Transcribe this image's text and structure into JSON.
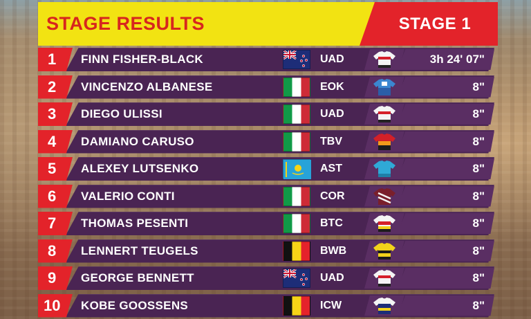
{
  "header": {
    "title": "STAGE RESULTS",
    "stage": "STAGE 1"
  },
  "colors": {
    "title_bar": "#f2e312",
    "title_text": "#d7261e",
    "accent_red": "#e3232a",
    "row_bg": "#4a2453"
  },
  "results": [
    {
      "pos": "1",
      "name": "FINN FISHER-BLACK",
      "flag": "new-zealand-flag-icon",
      "team": "UAD",
      "jersey": "uae-jersey-icon",
      "time": "3h 24' 07\""
    },
    {
      "pos": "2",
      "name": "VINCENZO ALBANESE",
      "flag": "italy-flag-icon",
      "team": "EOK",
      "jersey": "eolo-kometa-jersey-icon",
      "time": "8\""
    },
    {
      "pos": "3",
      "name": "DIEGO ULISSI",
      "flag": "italy-flag-icon",
      "team": "UAD",
      "jersey": "uae-jersey-icon",
      "time": "8\""
    },
    {
      "pos": "4",
      "name": "DAMIANO CARUSO",
      "flag": "italy-flag-icon",
      "team": "TBV",
      "jersey": "bahrain-victorious-jersey-icon",
      "time": "8\""
    },
    {
      "pos": "5",
      "name": "ALEXEY LUTSENKO",
      "flag": "kazakhstan-flag-icon",
      "team": "AST",
      "jersey": "astana-jersey-icon",
      "time": "8\""
    },
    {
      "pos": "6",
      "name": "VALERIO CONTI",
      "flag": "italy-flag-icon",
      "team": "COR",
      "jersey": "corratec-jersey-icon",
      "time": "8\""
    },
    {
      "pos": "7",
      "name": "THOMAS PESENTI",
      "flag": "italy-flag-icon",
      "team": "BTC",
      "jersey": "beltrami-jersey-icon",
      "time": "8\""
    },
    {
      "pos": "8",
      "name": "LENNERT TEUGELS",
      "flag": "belgium-flag-icon",
      "team": "BWB",
      "jersey": "bingoal-jersey-icon",
      "time": "8\""
    },
    {
      "pos": "9",
      "name": "GEORGE BENNETT",
      "flag": "new-zealand-flag-icon",
      "team": "UAD",
      "jersey": "uae-jersey-icon",
      "time": "8\""
    },
    {
      "pos": "10",
      "name": "KOBE GOOSSENS",
      "flag": "belgium-flag-icon",
      "team": "ICW",
      "jersey": "intermarche-jersey-icon",
      "time": "8\""
    }
  ]
}
